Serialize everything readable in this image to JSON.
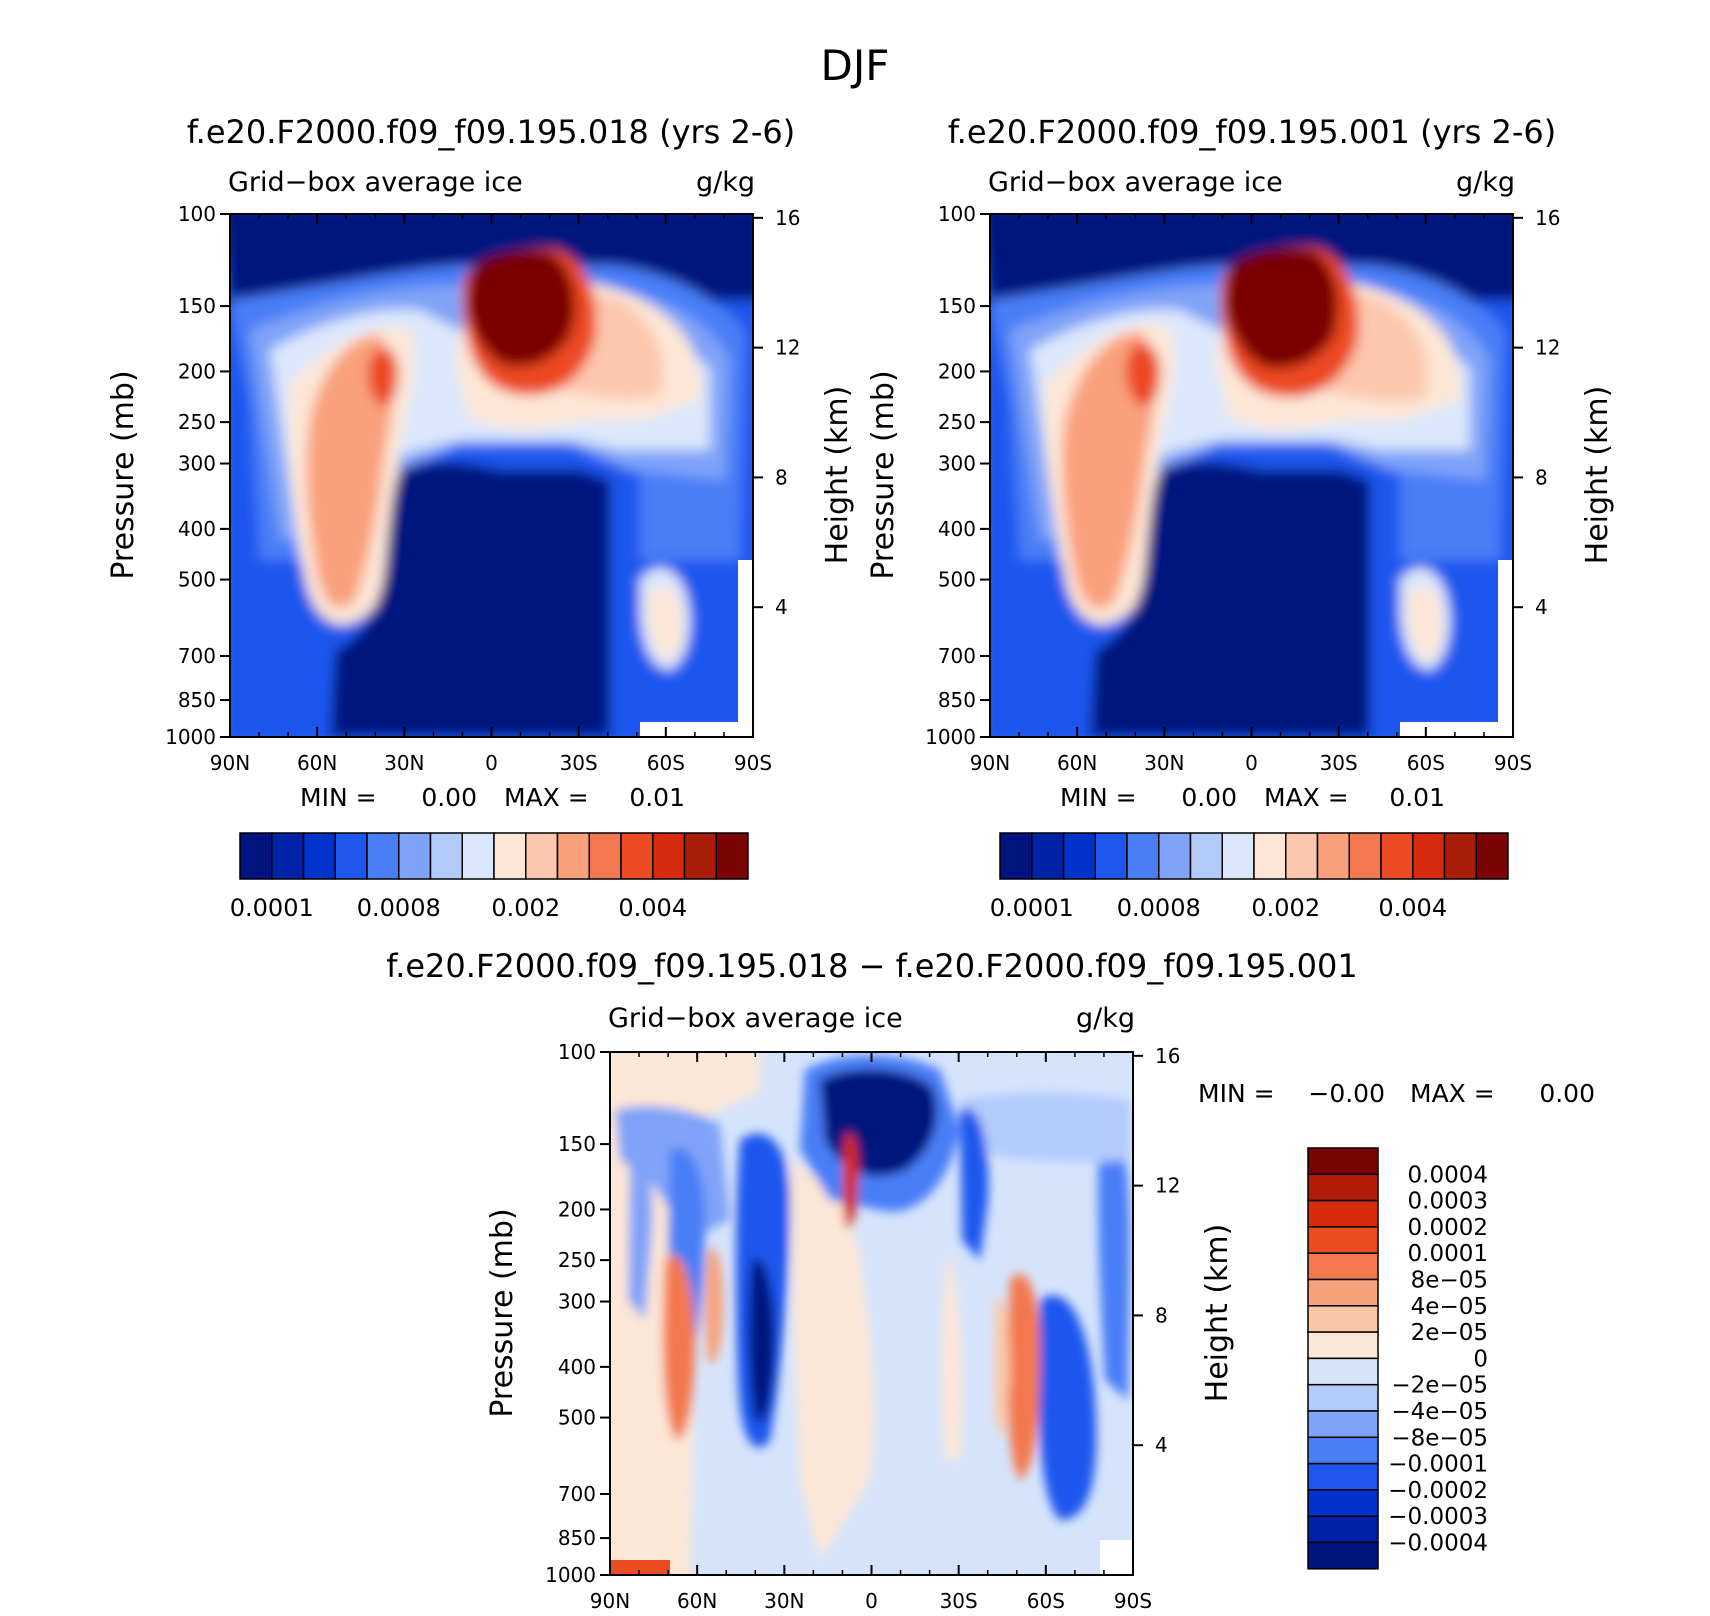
{
  "figure_title": "DJF",
  "colors": {
    "ice_levels": [
      "#00137f",
      "#0022a8",
      "#0032cc",
      "#1e56ee",
      "#4a7ef7",
      "#7fa3f8",
      "#b3cbfb",
      "#dbe7fc",
      "#fde6d6",
      "#fcc7ad",
      "#f9a07c",
      "#f4784f",
      "#ec4a22",
      "#d52b0c",
      "#a91c0a",
      "#7a0403"
    ],
    "diff_levels": [
      "#00137f",
      "#0022a8",
      "#0032cc",
      "#1e56ee",
      "#4a7ef7",
      "#7fa3f8",
      "#b3cbfb",
      "#d6e4fb",
      "#fce6d6",
      "#f9c7a8",
      "#f6a27c",
      "#f3784d",
      "#ec4c22",
      "#d62c0b",
      "#b11c09",
      "#7a0403"
    ]
  },
  "chart_data": [
    {
      "type": "heatmap",
      "title": "f.e20.F2000.f09_f09.195.018 (yrs 2-6)",
      "subtitle_left": "Grid−box average ice",
      "subtitle_right": "g/kg",
      "ylabel": "Pressure (mb)",
      "ylabel_right": "Height (km)",
      "x_ticks": [
        "90N",
        "60N",
        "30N",
        "0",
        "30S",
        "60S",
        "90S"
      ],
      "y_ticks": [
        "100",
        "150",
        "200",
        "250",
        "300",
        "400",
        "500",
        "700",
        "850",
        "1000"
      ],
      "y_ticks_right": [
        "16",
        "12",
        "8",
        "4"
      ],
      "stats": {
        "min_label": "MIN =",
        "min": "0.00",
        "max_label": "MAX =",
        "max": "0.01"
      },
      "colorbar_labels": [
        "0.0001",
        "0.0008",
        "0.002",
        "0.004"
      ]
    },
    {
      "type": "heatmap",
      "title": "f.e20.F2000.f09_f09.195.001 (yrs 2-6)",
      "subtitle_left": "Grid−box average ice",
      "subtitle_right": "g/kg",
      "ylabel": "Pressure (mb)",
      "ylabel_right": "Height (km)",
      "x_ticks": [
        "90N",
        "60N",
        "30N",
        "0",
        "30S",
        "60S",
        "90S"
      ],
      "y_ticks": [
        "100",
        "150",
        "200",
        "250",
        "300",
        "400",
        "500",
        "700",
        "850",
        "1000"
      ],
      "y_ticks_right": [
        "16",
        "12",
        "8",
        "4"
      ],
      "stats": {
        "min_label": "MIN =",
        "min": "0.00",
        "max_label": "MAX =",
        "max": "0.01"
      },
      "colorbar_labels": [
        "0.0001",
        "0.0008",
        "0.002",
        "0.004"
      ]
    },
    {
      "type": "heatmap",
      "title": "f.e20.F2000.f09_f09.195.018 − f.e20.F2000.f09_f09.195.001",
      "subtitle_left": "Grid−box average ice",
      "subtitle_right": "g/kg",
      "ylabel": "Pressure (mb)",
      "ylabel_right": "Height (km)",
      "x_ticks": [
        "90N",
        "60N",
        "30N",
        "0",
        "30S",
        "60S",
        "90S"
      ],
      "y_ticks": [
        "100",
        "150",
        "200",
        "250",
        "300",
        "400",
        "500",
        "700",
        "850",
        "1000"
      ],
      "y_ticks_right": [
        "16",
        "12",
        "8",
        "4"
      ],
      "stats": {
        "min_label": "MIN =",
        "min": "−0.00",
        "max_label": "MAX =",
        "max": "0.00"
      },
      "colorbar_labels": [
        "0.0004",
        "0.0003",
        "0.0002",
        "0.0001",
        "8e−05",
        "4e−05",
        "2e−05",
        "0",
        "−2e−05",
        "−4e−05",
        "−8e−05",
        "−0.0001",
        "−0.0002",
        "−0.0003",
        "−0.0004"
      ]
    }
  ]
}
